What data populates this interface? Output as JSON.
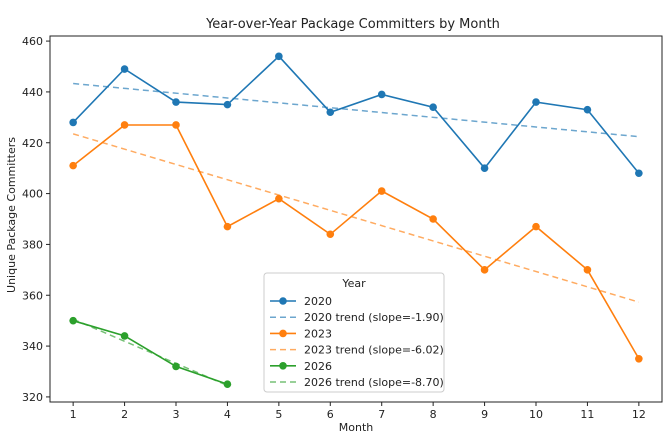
{
  "chart_data": {
    "type": "line",
    "title": "Year-over-Year Package Committers by Month",
    "xlabel": "Month",
    "ylabel": "Unique Package Committers",
    "x_ticks": [
      1,
      2,
      3,
      4,
      5,
      6,
      7,
      8,
      9,
      10,
      11,
      12
    ],
    "y_ticks": [
      320,
      340,
      360,
      380,
      400,
      420,
      440,
      460
    ],
    "xlim": [
      0.55,
      12.45
    ],
    "ylim": [
      318,
      462
    ],
    "grid": false,
    "legend": {
      "title": "Year",
      "placement": "lower-center",
      "entries": [
        "2020",
        "2020 trend (slope=-1.90)",
        "2023",
        "2023 trend (slope=-6.02)",
        "2026",
        "2026 trend (slope=-8.70)"
      ]
    },
    "series": [
      {
        "name": "2020",
        "color": "#1f77b4",
        "x": [
          1,
          2,
          3,
          4,
          5,
          6,
          7,
          8,
          9,
          10,
          11,
          12
        ],
        "values": [
          428,
          449,
          436,
          435,
          454,
          432,
          439,
          434,
          410,
          436,
          433,
          408
        ],
        "trend": {
          "name": "2020 trend (slope=-1.90)",
          "slope": -1.9,
          "start": [
            1,
            443.3
          ],
          "end": [
            12,
            422.4
          ]
        }
      },
      {
        "name": "2023",
        "color": "#ff7f0e",
        "x": [
          1,
          2,
          3,
          4,
          5,
          6,
          7,
          8,
          9,
          10,
          11,
          12
        ],
        "values": [
          411,
          427,
          427,
          387,
          398,
          384,
          401,
          390,
          370,
          387,
          370,
          335
        ],
        "trend": {
          "name": "2023 trend (slope=-6.02)",
          "slope": -6.02,
          "start": [
            1,
            423.5
          ],
          "end": [
            12,
            357.3
          ]
        }
      },
      {
        "name": "2026",
        "color": "#2ca02c",
        "x": [
          1,
          2,
          3,
          4
        ],
        "values": [
          350,
          344,
          332,
          325
        ],
        "trend": {
          "name": "2026 trend (slope=-8.70)",
          "slope": -8.7,
          "start": [
            1,
            350.6
          ],
          "end": [
            4,
            324.5
          ]
        }
      }
    ]
  }
}
